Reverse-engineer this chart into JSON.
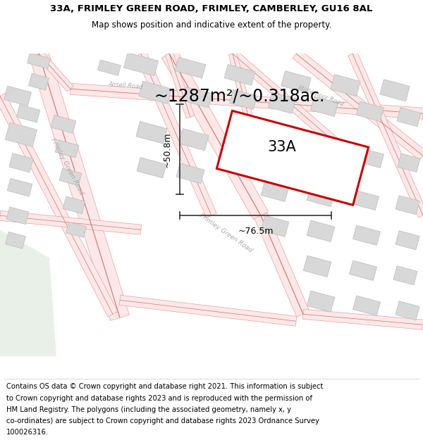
{
  "title_line1": "33A, FRIMLEY GREEN ROAD, FRIMLEY, CAMBERLEY, GU16 8AL",
  "title_line2": "Map shows position and indicative extent of the property.",
  "area_text": "~1287m²/~0.318ac.",
  "property_label": "33A",
  "width_label": "~76.5m",
  "height_label": "~50.8m",
  "footer_lines": [
    "Contains OS data © Crown copyright and database right 2021. This information is subject",
    "to Crown copyright and database rights 2023 and is reproduced with the permission of",
    "HM Land Registry. The polygons (including the associated geometry, namely x, y",
    "co-ordinates) are subject to Crown copyright and database rights 2023 Ordnance Survey",
    "100026316."
  ],
  "map_bg": "#ffffff",
  "road_fill": "#fce8e8",
  "road_line": "#e8a0a0",
  "road_center": "#d07070",
  "building_fill": "#d8d8d8",
  "building_edge": "#bbbbbb",
  "property_fill": "#ffffff",
  "property_edge": "#cc0000",
  "dim_color": "#333333",
  "road_label_color": "#aaaaaa",
  "title_fs": 9.5,
  "subtitle_fs": 8.5,
  "area_fs": 17,
  "label_fs": 15,
  "dim_fs": 9,
  "footer_fs": 7.2
}
